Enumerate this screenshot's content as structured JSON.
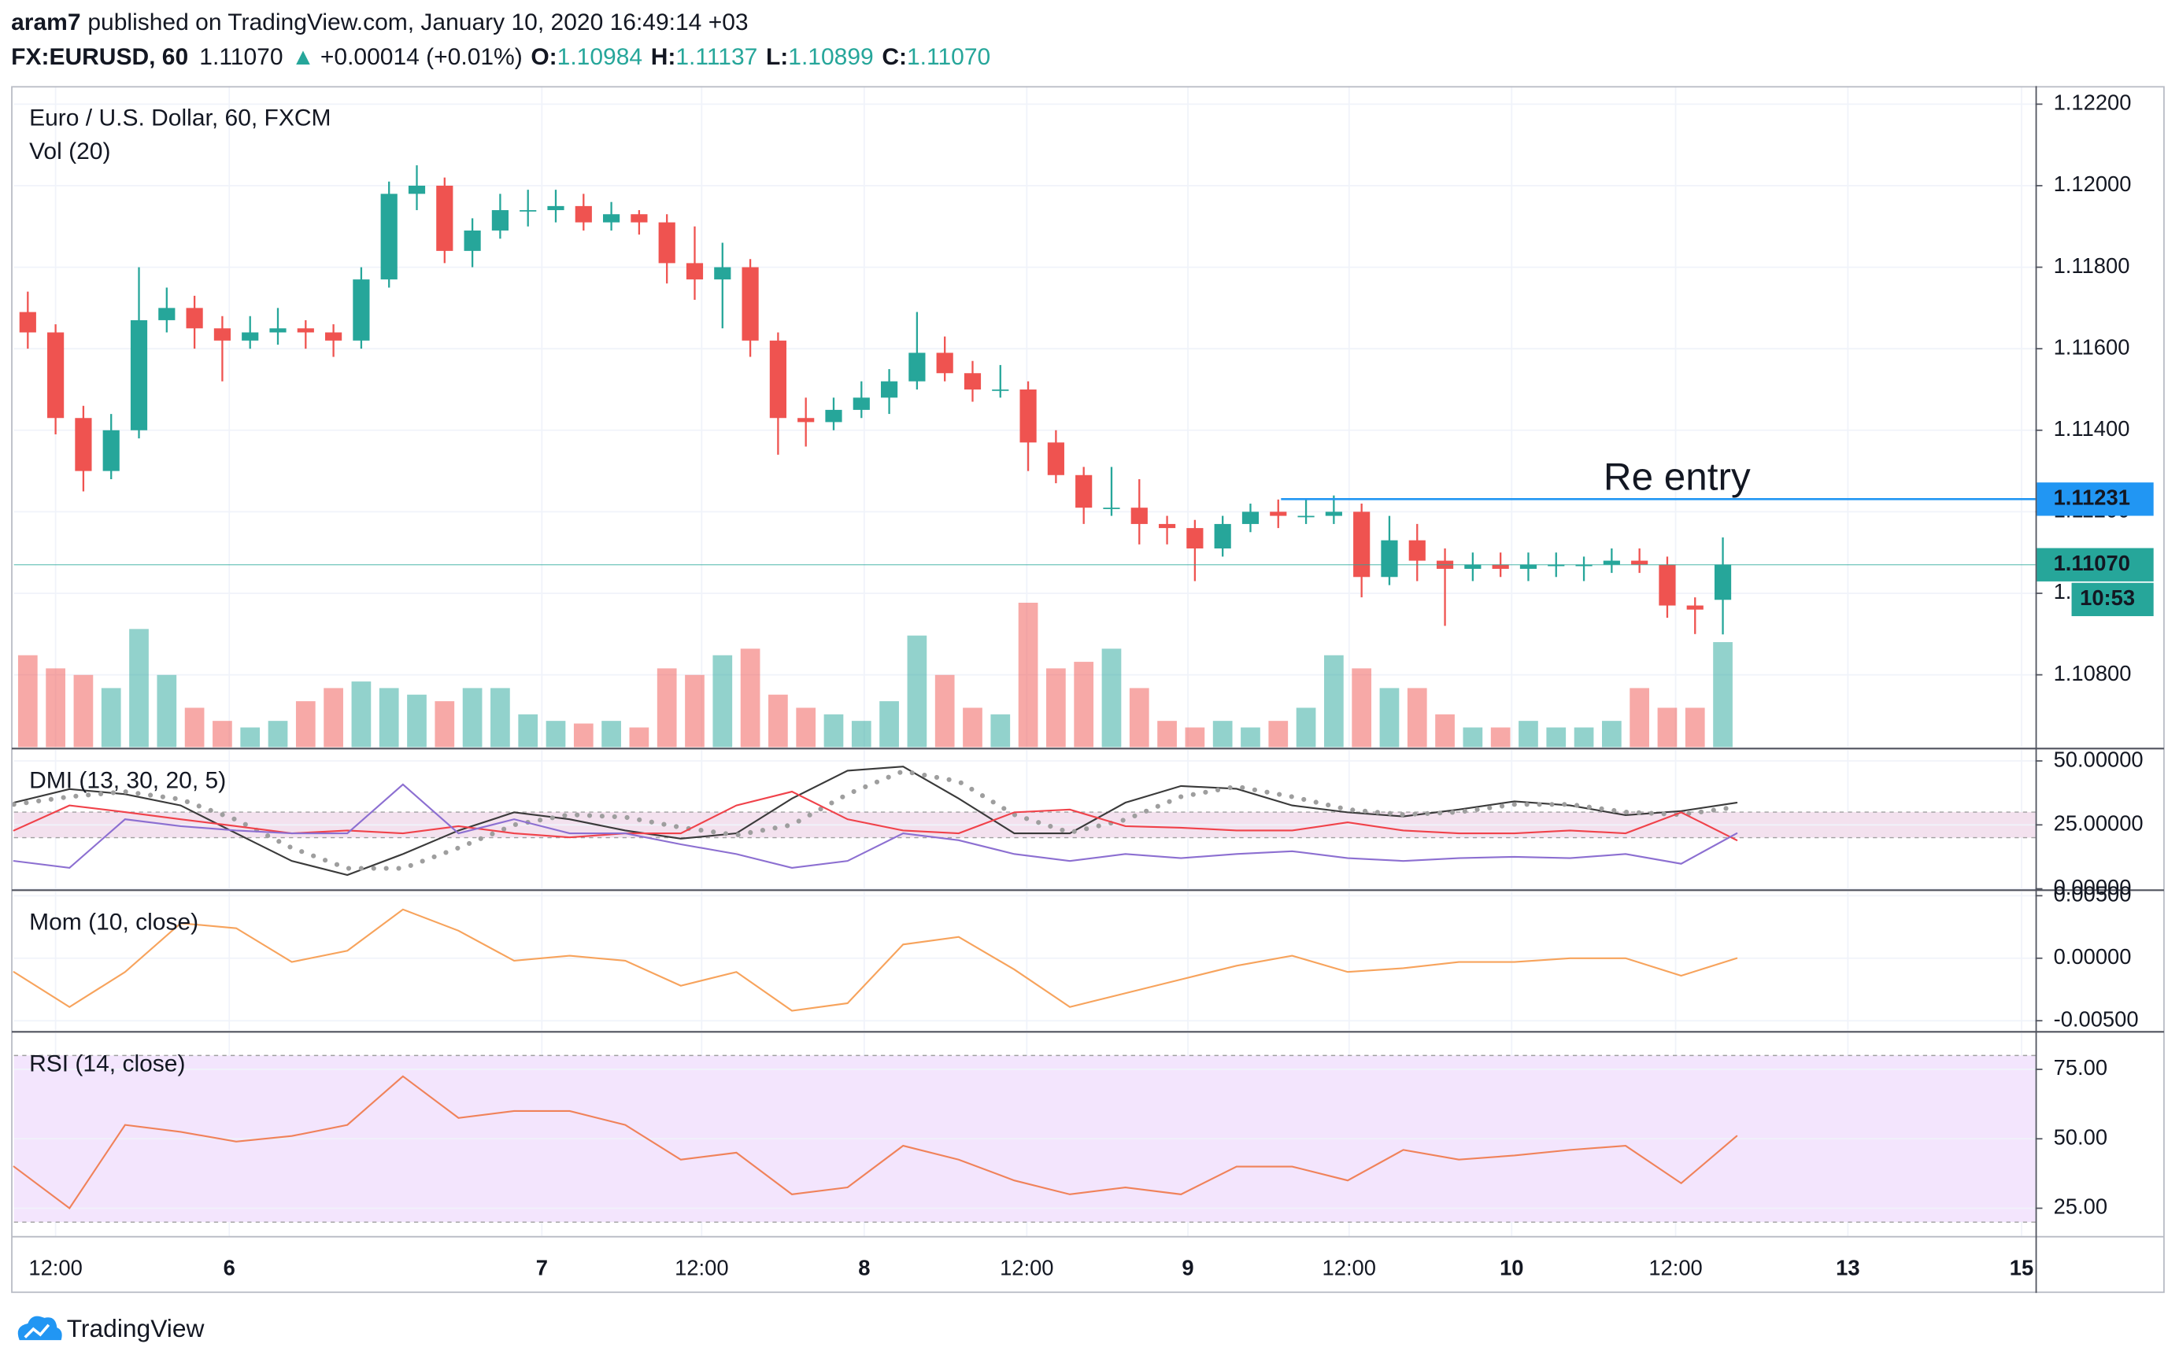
{
  "header": {
    "author": "aram7",
    "published": "published on TradingView.com, January 10, 2020 16:49:14 +03",
    "symbol": "FX:EURUSD, 60",
    "last": "1.11070",
    "arrow": "▲",
    "change": "+0.00014 (+0.01%)",
    "ohlc": [
      {
        "label": "O:",
        "value": "1.10984"
      },
      {
        "label": "H:",
        "value": "1.11137"
      },
      {
        "label": "L:",
        "value": "1.10899"
      },
      {
        "label": "C:",
        "value": "1.11070"
      }
    ]
  },
  "footer": {
    "brand": "TradingView"
  },
  "chart_data": [
    {
      "type": "candlestick",
      "title": "Euro / U.S. Dollar, 60, FXCM",
      "up_color": "#26a69a",
      "down_color": "#ef5350",
      "x": [
        1,
        3,
        5,
        7,
        9,
        11,
        13,
        15,
        17,
        19,
        21,
        23,
        25,
        27,
        29,
        31,
        33,
        35,
        37,
        39,
        41,
        43,
        45,
        47,
        49,
        51,
        53,
        55,
        57,
        59,
        61,
        63,
        65,
        67,
        69,
        71,
        73,
        75,
        77,
        79,
        81,
        83,
        85,
        87,
        89,
        91,
        93,
        95,
        97,
        99,
        101,
        103,
        105,
        107,
        109,
        111,
        113,
        115,
        117,
        119,
        121,
        123
      ],
      "ohlc": [
        [
          1.1169,
          1.1174,
          1.116,
          1.1164
        ],
        [
          1.1164,
          1.1166,
          1.1139,
          1.1143
        ],
        [
          1.1143,
          1.1146,
          1.1125,
          1.113
        ],
        [
          1.113,
          1.1144,
          1.1128,
          1.114
        ],
        [
          1.114,
          1.118,
          1.1138,
          1.1167
        ],
        [
          1.1167,
          1.1175,
          1.1164,
          1.117
        ],
        [
          1.117,
          1.1173,
          1.116,
          1.1165
        ],
        [
          1.1165,
          1.1168,
          1.1152,
          1.1162
        ],
        [
          1.1162,
          1.1168,
          1.116,
          1.1164
        ],
        [
          1.1164,
          1.117,
          1.1161,
          1.1165
        ],
        [
          1.1165,
          1.1167,
          1.116,
          1.1164
        ],
        [
          1.1164,
          1.1166,
          1.1158,
          1.1162
        ],
        [
          1.1162,
          1.118,
          1.116,
          1.1177
        ],
        [
          1.1177,
          1.1201,
          1.1175,
          1.1198
        ],
        [
          1.1198,
          1.1205,
          1.1194,
          1.12
        ],
        [
          1.12,
          1.1202,
          1.1181,
          1.1184
        ],
        [
          1.1184,
          1.1192,
          1.118,
          1.1189
        ],
        [
          1.1189,
          1.1198,
          1.1187,
          1.1194
        ],
        [
          1.1194,
          1.1199,
          1.119,
          1.1194
        ],
        [
          1.1194,
          1.1199,
          1.1191,
          1.1195
        ],
        [
          1.1195,
          1.1198,
          1.1189,
          1.1191
        ],
        [
          1.1191,
          1.1196,
          1.1189,
          1.1193
        ],
        [
          1.1193,
          1.1194,
          1.1188,
          1.1191
        ],
        [
          1.1191,
          1.1193,
          1.1176,
          1.1181
        ],
        [
          1.1181,
          1.119,
          1.1172,
          1.1177
        ],
        [
          1.1177,
          1.1186,
          1.1165,
          1.118
        ],
        [
          1.118,
          1.1182,
          1.1158,
          1.1162
        ],
        [
          1.1162,
          1.1164,
          1.1134,
          1.1143
        ],
        [
          1.1143,
          1.1148,
          1.1136,
          1.1142
        ],
        [
          1.1142,
          1.1148,
          1.114,
          1.1145
        ],
        [
          1.1145,
          1.1152,
          1.1143,
          1.1148
        ],
        [
          1.1148,
          1.1155,
          1.1144,
          1.1152
        ],
        [
          1.1152,
          1.1169,
          1.115,
          1.1159
        ],
        [
          1.1159,
          1.1163,
          1.1152,
          1.1154
        ],
        [
          1.1154,
          1.1157,
          1.1147,
          1.115
        ],
        [
          1.115,
          1.1156,
          1.1148,
          1.115
        ],
        [
          1.115,
          1.1152,
          1.113,
          1.1137
        ],
        [
          1.1137,
          1.114,
          1.1127,
          1.1129
        ],
        [
          1.1129,
          1.1131,
          1.1117,
          1.1121
        ],
        [
          1.1121,
          1.1131,
          1.1119,
          1.1121
        ],
        [
          1.1121,
          1.1128,
          1.1112,
          1.1117
        ],
        [
          1.1117,
          1.1119,
          1.1112,
          1.1116
        ],
        [
          1.1116,
          1.1118,
          1.1103,
          1.1111
        ],
        [
          1.1111,
          1.1119,
          1.1109,
          1.1117
        ],
        [
          1.1117,
          1.1122,
          1.1115,
          1.112
        ],
        [
          1.112,
          1.1123,
          1.1116,
          1.1119
        ],
        [
          1.1119,
          1.1123,
          1.1117,
          1.1119
        ],
        [
          1.1119,
          1.1124,
          1.1117,
          1.112
        ],
        [
          1.112,
          1.1122,
          1.1099,
          1.1104
        ],
        [
          1.1104,
          1.1119,
          1.1102,
          1.1113
        ],
        [
          1.1113,
          1.1117,
          1.1103,
          1.1108
        ],
        [
          1.1108,
          1.1111,
          1.1092,
          1.1106
        ],
        [
          1.1106,
          1.111,
          1.1103,
          1.1107
        ],
        [
          1.1107,
          1.111,
          1.1104,
          1.1106
        ],
        [
          1.1106,
          1.111,
          1.1103,
          1.1107
        ],
        [
          1.1107,
          1.111,
          1.1104,
          1.1107
        ],
        [
          1.1107,
          1.1109,
          1.1103,
          1.1107
        ],
        [
          1.1107,
          1.1111,
          1.1105,
          1.1108
        ],
        [
          1.1108,
          1.1111,
          1.1105,
          1.1107
        ],
        [
          1.1107,
          1.1109,
          1.1094,
          1.1097
        ],
        [
          1.1097,
          1.1099,
          1.109,
          1.1096
        ],
        [
          1.10984,
          1.11137,
          1.10899,
          1.1107
        ]
      ],
      "volume": {
        "name": "Vol (20)",
        "values": [
          70,
          60,
          55,
          45,
          90,
          55,
          30,
          20,
          15,
          20,
          35,
          45,
          50,
          45,
          40,
          35,
          45,
          45,
          25,
          20,
          18,
          20,
          15,
          60,
          55,
          70,
          75,
          40,
          30,
          25,
          20,
          35,
          85,
          55,
          30,
          25,
          110,
          60,
          65,
          75,
          45,
          20,
          15,
          20,
          15,
          20,
          30,
          70,
          60,
          45,
          45,
          25,
          15,
          15,
          20,
          15,
          15,
          20,
          45,
          30,
          30,
          80
        ]
      },
      "xlim": [
        0,
        145.5
      ],
      "xticks": [
        {
          "value": 3,
          "label": "12:00"
        },
        {
          "value": 15.5,
          "label": "6"
        },
        {
          "value": 38,
          "label": "7"
        },
        {
          "value": 49.5,
          "label": "12:00"
        },
        {
          "value": 61.2,
          "label": "8"
        },
        {
          "value": 72.9,
          "label": "12:00"
        },
        {
          "value": 84.5,
          "label": "9"
        },
        {
          "value": 96.1,
          "label": "12:00"
        },
        {
          "value": 107.8,
          "label": "10"
        },
        {
          "value": 119.6,
          "label": "12:00"
        },
        {
          "value": 132,
          "label": "13"
        },
        {
          "value": 144.5,
          "label": "15"
        }
      ],
      "ylim": [
        1.106225,
        1.122443
      ],
      "yticks": [
        {
          "value": 1.108,
          "label": "1.10800"
        },
        {
          "value": 1.11,
          "label": "1.11000"
        },
        {
          "value": 1.112,
          "label": "1.11200"
        },
        {
          "value": 1.114,
          "label": "1.11400"
        },
        {
          "value": 1.116,
          "label": "1.11600"
        },
        {
          "value": 1.118,
          "label": "1.11800"
        },
        {
          "value": 1.12,
          "label": "1.12000"
        },
        {
          "value": 1.122,
          "label": "1.12200"
        }
      ],
      "grid": true,
      "last_price": {
        "value": 1.1107,
        "label": "1.11070",
        "countdown": "10:53",
        "color": "#26a69a"
      },
      "annotation": {
        "text": "Re entry",
        "value": 1.11231,
        "label": "1.11231",
        "color": "#2196f3",
        "text_color": "#1f1f7a"
      }
    },
    {
      "type": "line",
      "title": "DMI (13, 30, 20, 5)",
      "x": [
        0,
        4,
        8,
        12,
        16,
        20,
        24,
        28,
        32,
        36,
        40,
        44,
        48,
        52,
        56,
        60,
        64,
        68,
        72,
        76,
        80,
        84,
        88,
        92,
        96,
        100,
        104,
        108,
        112,
        116,
        120,
        124
      ],
      "series": [
        {
          "color": "#3a3a3a",
          "style": "solid",
          "values": [
            33.7,
            39,
            37,
            32.6,
            21.7,
            10.9,
            5.4,
            13.6,
            22.8,
            29.9,
            27.2,
            22.8,
            19.6,
            21.7,
            35.3,
            46.2,
            47.8,
            35.3,
            21.7,
            21.7,
            33.7,
            40.2,
            39.1,
            32.6,
            29.9,
            28.3,
            31,
            34.2,
            32.6,
            28.8,
            30.4,
            33.7
          ]
        },
        {
          "color": "#9e9e9e",
          "style": "dotted",
          "values": [
            33,
            36,
            38,
            35,
            27,
            16,
            8,
            8,
            16,
            25,
            29,
            28,
            24,
            21,
            25,
            37,
            46,
            42,
            29,
            22,
            27,
            36,
            40,
            36,
            31,
            29,
            30,
            33,
            33,
            30,
            29,
            32
          ]
        },
        {
          "color": "#f0424a",
          "style": "solid",
          "values": [
            22.8,
            32.6,
            30,
            27.2,
            24.5,
            21.7,
            22.8,
            21.7,
            24.5,
            21.7,
            20.1,
            21.7,
            21.7,
            32.6,
            38,
            27.2,
            22.8,
            21.7,
            29.9,
            31,
            24.5,
            23.9,
            22.8,
            22.8,
            26,
            22.8,
            21.7,
            21.7,
            22.8,
            21.7,
            29.9,
            19
          ]
        },
        {
          "color": "#8c6fd1",
          "style": "solid",
          "values": [
            10.9,
            8.2,
            27.2,
            24.5,
            22.8,
            21.7,
            21.7,
            40.8,
            21.7,
            27.2,
            21.7,
            21.7,
            17.4,
            13.6,
            8.2,
            10.9,
            21.7,
            19,
            13.6,
            10.9,
            13.6,
            12,
            13.6,
            14.7,
            12,
            10.9,
            12,
            12.5,
            12,
            13.6,
            9.8,
            21.7
          ]
        }
      ],
      "band": [
        20,
        30
      ],
      "band_color": "#f3e1ee",
      "ylim": [
        0,
        54.3
      ],
      "yticks": [
        {
          "value": 0,
          "label": "0.00000"
        },
        {
          "value": 25,
          "label": "25.00000"
        },
        {
          "value": 50,
          "label": "50.00000"
        }
      ]
    },
    {
      "type": "line",
      "title": "Mom (10, close)",
      "x": [
        0,
        4,
        8,
        12,
        16,
        20,
        24,
        28,
        32,
        36,
        40,
        44,
        48,
        52,
        56,
        60,
        64,
        68,
        72,
        76,
        80,
        84,
        88,
        92,
        96,
        100,
        104,
        108,
        112,
        116,
        120,
        124
      ],
      "series": [
        {
          "color": "#f7a35c",
          "style": "solid",
          "values": [
            -0.0011,
            -0.0039,
            -0.0011,
            0.0028,
            0.0024,
            -0.0003,
            0.0006,
            0.0039,
            0.0022,
            -0.0002,
            0.0002,
            -0.0002,
            -0.0022,
            -0.0011,
            -0.0042,
            -0.0036,
            0.0011,
            0.0017,
            -0.0009,
            -0.0039,
            -0.0028,
            -0.0017,
            -0.0006,
            0.0002,
            -0.0011,
            -0.0008,
            -0.0003,
            -0.0003,
            0,
            0,
            -0.0014,
            0
          ]
        }
      ],
      "ylim": [
        -0.00578,
        0.00533
      ],
      "yticks": [
        {
          "value": -0.005,
          "label": "-0.00500"
        },
        {
          "value": 0,
          "label": "0.00000"
        },
        {
          "value": 0.005,
          "label": "0.00500"
        }
      ]
    },
    {
      "type": "line",
      "title": "RSI (14, close)",
      "x": [
        0,
        4,
        8,
        12,
        16,
        20,
        24,
        28,
        32,
        36,
        40,
        44,
        48,
        52,
        56,
        60,
        64,
        68,
        72,
        76,
        80,
        84,
        88,
        92,
        96,
        100,
        104,
        108,
        112,
        116,
        120,
        124
      ],
      "series": [
        {
          "color": "#f0825a",
          "style": "solid",
          "values": [
            40,
            25,
            55,
            52.5,
            49,
            51,
            55,
            72.5,
            57.5,
            60,
            60,
            55,
            42.5,
            45,
            30,
            32.5,
            47.5,
            42.5,
            35,
            30,
            32.5,
            30,
            40,
            40,
            35,
            46,
            42.5,
            44,
            46,
            47.5,
            34,
            51
          ]
        }
      ],
      "band": [
        20,
        80
      ],
      "band_color": "#f3e5fd",
      "ylim": [
        15,
        88
      ],
      "yticks": [
        {
          "value": 25,
          "label": "25.00"
        },
        {
          "value": 50,
          "label": "50.00"
        },
        {
          "value": 75,
          "label": "75.00"
        }
      ]
    }
  ]
}
